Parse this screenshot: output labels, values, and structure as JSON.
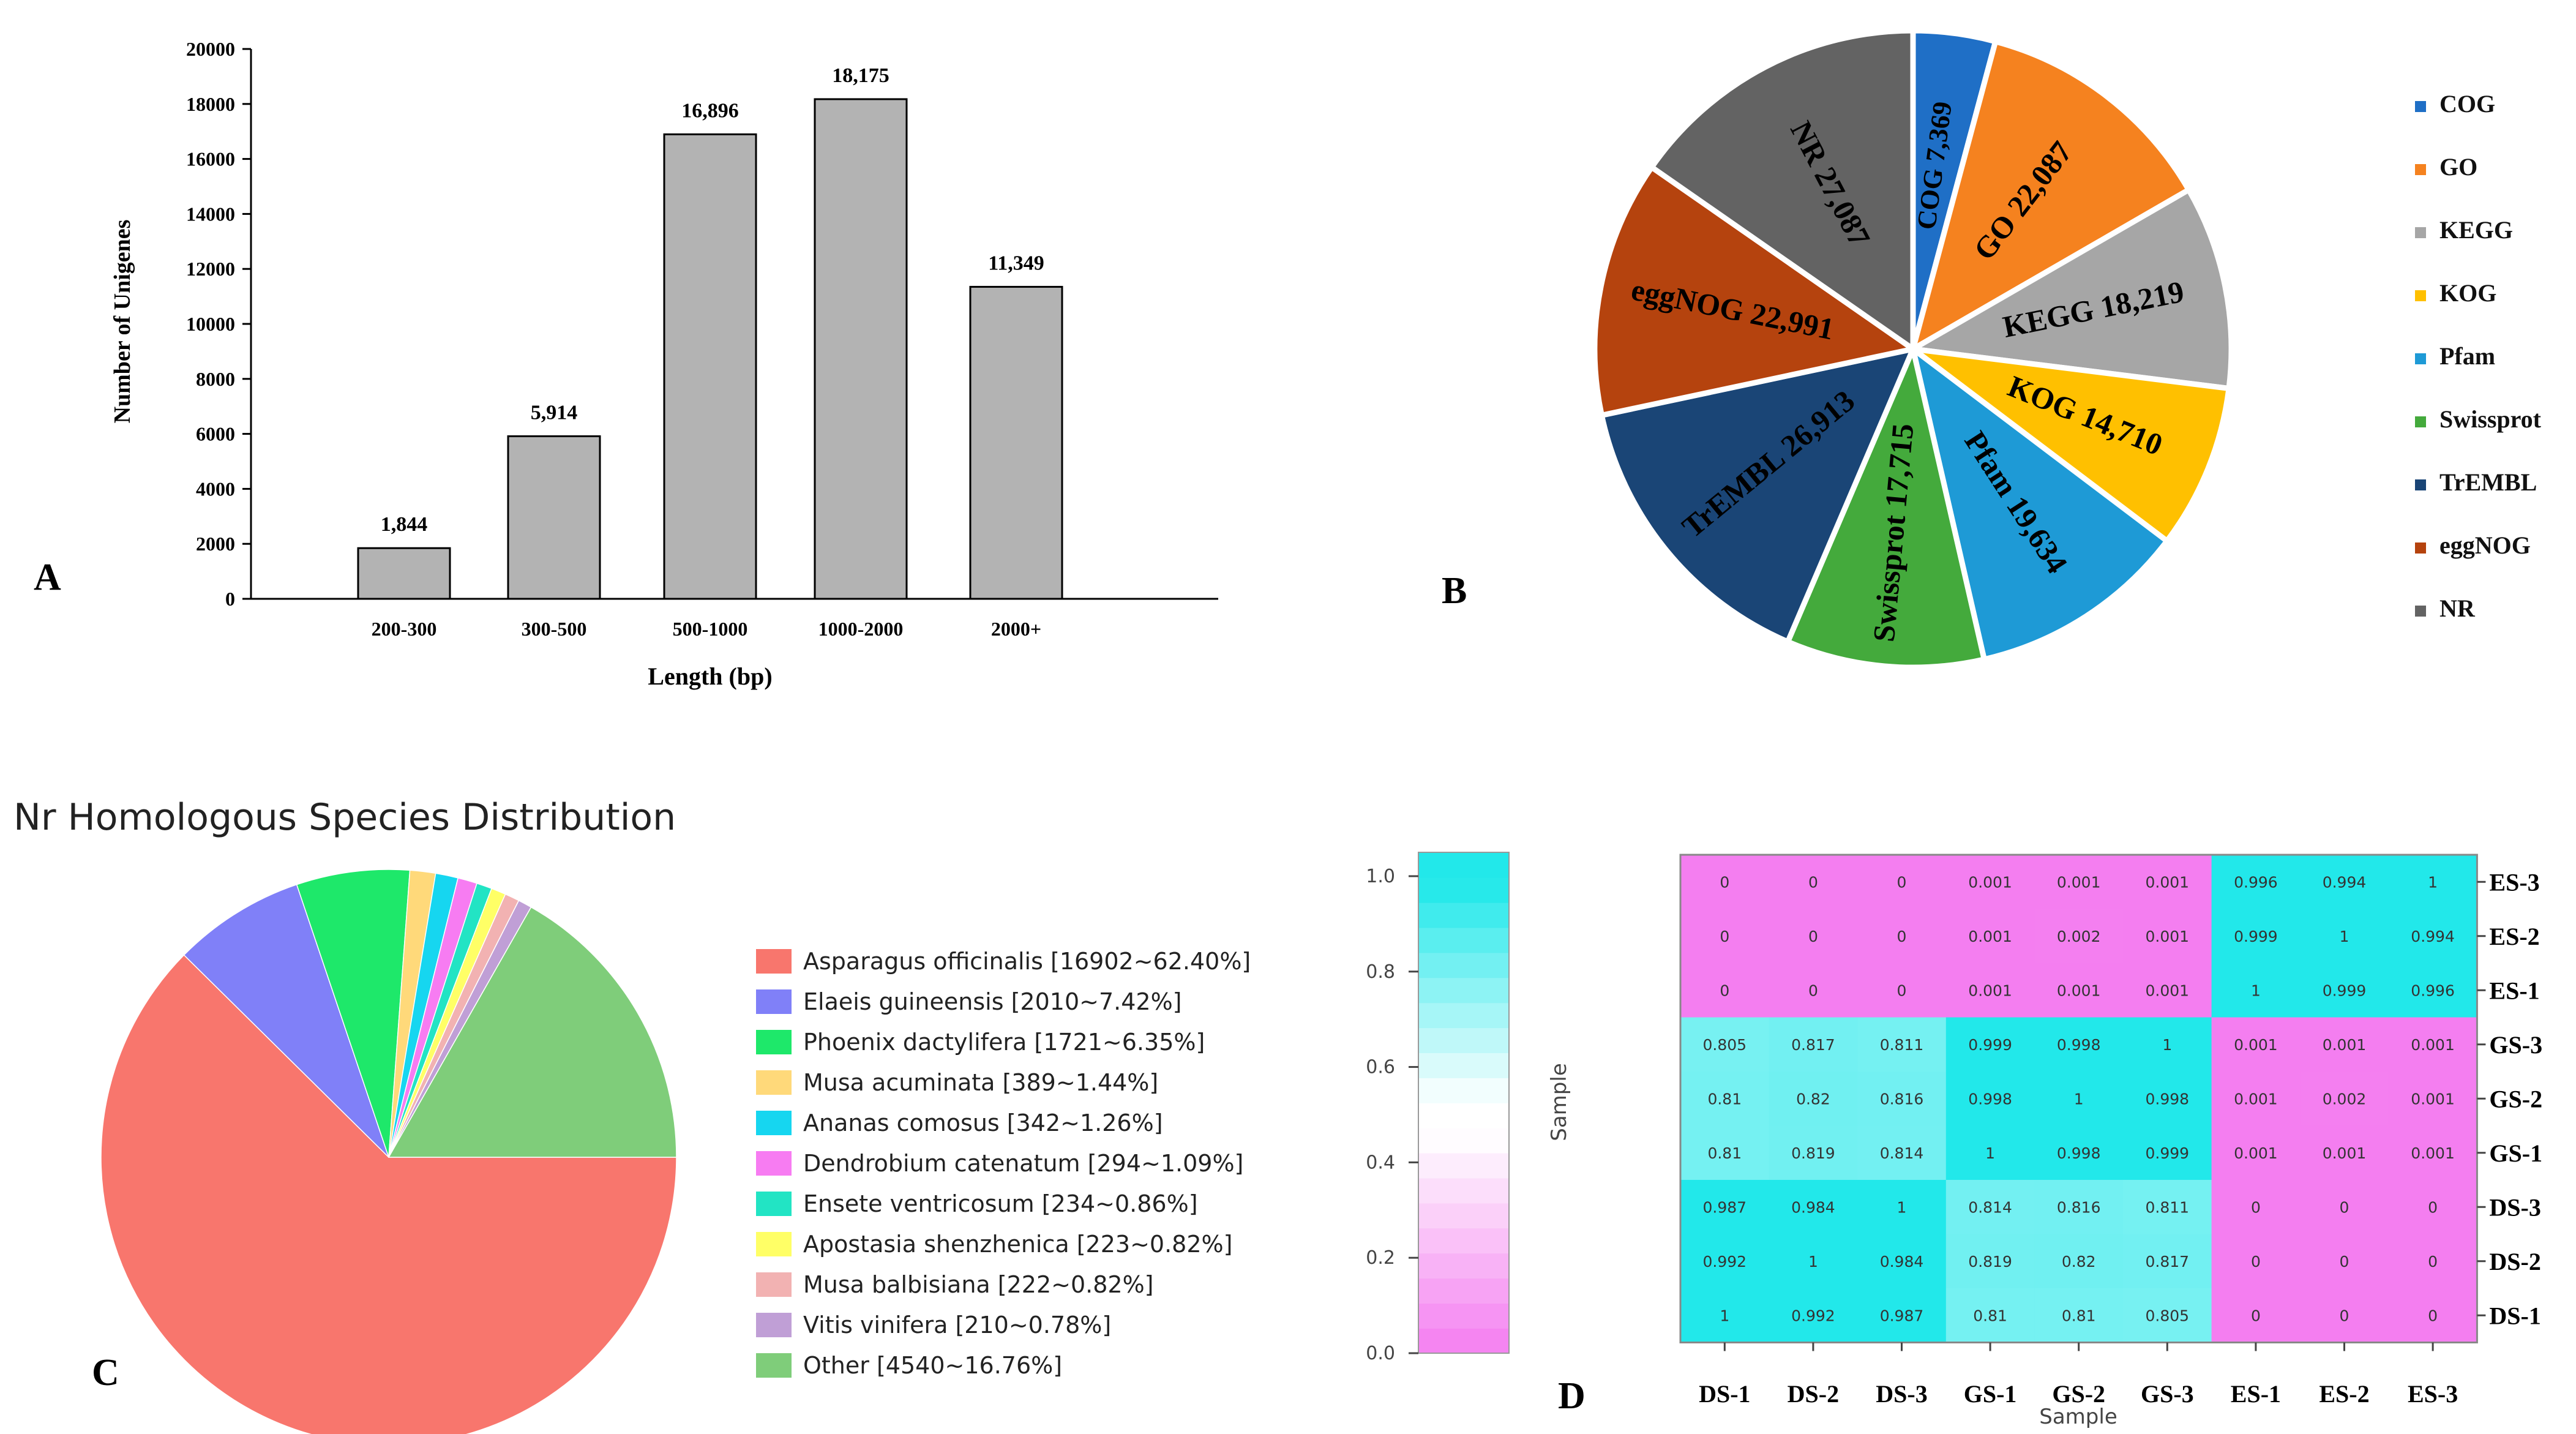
{
  "panel_labels": {
    "a": "A",
    "b": "B",
    "c": "C",
    "d": "D"
  },
  "chart_data": [
    {
      "type": "bar",
      "panel": "A",
      "title": "",
      "xlabel": "Length (bp)",
      "ylabel": "Number of Unigenes",
      "categories": [
        "200-300",
        "300-500",
        "500-1000",
        "1000-2000",
        "2000+"
      ],
      "values": [
        1844,
        5914,
        16896,
        18175,
        11349
      ],
      "data_labels": [
        "1,844",
        "5,914",
        "16,896",
        "18,175",
        "11,349"
      ],
      "ylim": [
        0,
        20000
      ],
      "yticks": [
        0,
        2000,
        4000,
        6000,
        8000,
        10000,
        12000,
        14000,
        16000,
        18000,
        20000
      ],
      "ytick_labels": [
        "0",
        "2000",
        "4000",
        "6000",
        "8000",
        "10000",
        "12000",
        "14000",
        "16000",
        "18000",
        "20000"
      ],
      "bar_color": "#b3b3b3",
      "grid": false
    },
    {
      "type": "pie",
      "panel": "B",
      "title": "",
      "labels": [
        "COG",
        "GO",
        "KEGG",
        "KOG",
        "Pfam",
        "Swissprot",
        "TrEMBL",
        "eggNOG",
        "NR"
      ],
      "values": [
        7369,
        22087,
        18219,
        14710,
        19634,
        17715,
        26913,
        22991,
        27087
      ],
      "slice_labels": [
        "COG 7,369",
        "GO 22,087",
        "KEGG 18,219",
        "KOG 14,710",
        "Pfam 19,634",
        "Swissprot 17,715",
        "TrEMBL 26,913",
        "eggNOG 22,991",
        "NR 27,087"
      ],
      "colors": [
        "#1f6fc6",
        "#f5821f",
        "#a6a6a6",
        "#ffc000",
        "#1e9ad6",
        "#44aa3c",
        "#1a4576",
        "#b5430e",
        "#636363"
      ],
      "legend_position": "right"
    },
    {
      "type": "pie",
      "panel": "C",
      "title": "Nr Homologous Species Distribution",
      "labels": [
        "Asparagus officinalis",
        "Elaeis guineensis",
        "Phoenix dactylifera",
        "Musa acuminata",
        "Ananas comosus",
        "Dendrobium catenatum",
        "Ensete ventricosum",
        "Apostasia shenzhenica",
        "Musa balbisiana",
        "Vitis vinifera",
        "Other"
      ],
      "values": [
        16902,
        2010,
        1721,
        389,
        342,
        294,
        234,
        223,
        222,
        210,
        4540
      ],
      "percents": [
        62.4,
        7.42,
        6.35,
        1.44,
        1.26,
        1.09,
        0.86,
        0.82,
        0.82,
        0.78,
        16.76
      ],
      "legend_labels": [
        "Asparagus officinalis [16902~62.40%]",
        "Elaeis guineensis [2010~7.42%]",
        "Phoenix dactylifera [1721~6.35%]",
        "Musa acuminata [389~1.44%]",
        "Ananas comosus [342~1.26%]",
        "Dendrobium catenatum [294~1.09%]",
        "Ensete ventricosum [234~0.86%]",
        "Apostasia shenzhenica [223~0.82%]",
        "Musa balbisiana [222~0.82%]",
        "Vitis vinifera [210~0.78%]",
        "Other [4540~16.76%]"
      ],
      "colors": [
        "#f8766d",
        "#8080f8",
        "#1ee86a",
        "#ffd97a",
        "#16d6f0",
        "#f77cf2",
        "#22e4c4",
        "#ffff66",
        "#f2b2b2",
        "#c09fd6",
        "#7fcd7a"
      ],
      "legend_position": "right"
    },
    {
      "type": "heatmap",
      "panel": "D",
      "title": "",
      "xlabel": "Sample",
      "ylabel": "",
      "x_categories": [
        "DS-1",
        "DS-2",
        "DS-3",
        "GS-1",
        "GS-2",
        "GS-3",
        "ES-1",
        "ES-2",
        "ES-3"
      ],
      "y_categories": [
        "ES-3",
        "ES-2",
        "ES-1",
        "GS-3",
        "GS-2",
        "GS-1",
        "DS-3",
        "DS-2",
        "DS-1"
      ],
      "matrix": [
        [
          "0",
          "0",
          "0",
          "0.001",
          "0.001",
          "0.001",
          "0.996",
          "0.994",
          "1"
        ],
        [
          "0",
          "0",
          "0",
          "0.001",
          "0.002",
          "0.001",
          "0.999",
          "1",
          "0.994"
        ],
        [
          "0",
          "0",
          "0",
          "0.001",
          "0.001",
          "0.001",
          "1",
          "0.999",
          "0.996"
        ],
        [
          "0.805",
          "0.817",
          "0.811",
          "0.999",
          "0.998",
          "1",
          "0.001",
          "0.001",
          "0.001"
        ],
        [
          "0.81",
          "0.82",
          "0.816",
          "0.998",
          "1",
          "0.998",
          "0.001",
          "0.002",
          "0.001"
        ],
        [
          "0.81",
          "0.819",
          "0.814",
          "1",
          "0.998",
          "0.999",
          "0.001",
          "0.001",
          "0.001"
        ],
        [
          "0.987",
          "0.984",
          "1",
          "0.814",
          "0.816",
          "0.811",
          "0",
          "0",
          "0"
        ],
        [
          "0.992",
          "1",
          "0.984",
          "0.819",
          "0.82",
          "0.817",
          "0",
          "0",
          "0"
        ],
        [
          "1",
          "0.992",
          "0.987",
          "0.81",
          "0.81",
          "0.805",
          "0",
          "0",
          "0"
        ]
      ],
      "colorbar": {
        "label": "Sample",
        "range": [
          0,
          1.05
        ],
        "ticks": [
          0,
          0.2,
          0.4,
          0.6,
          0.8,
          1.0
        ],
        "tick_labels": [
          "0.0",
          "0.2",
          "0.4",
          "0.6",
          "0.8",
          "1.0"
        ],
        "low_color": "#f47ef0",
        "high_color": "#22e8ea"
      }
    }
  ]
}
